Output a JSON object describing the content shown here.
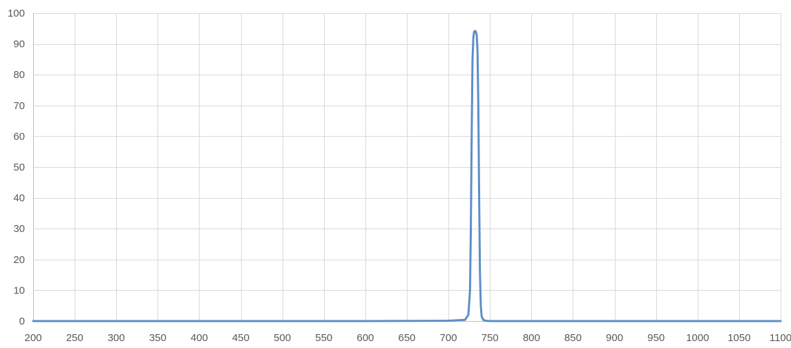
{
  "chart_data": {
    "type": "line",
    "title": "",
    "xlabel": "",
    "ylabel": "",
    "xlim": [
      200,
      1100
    ],
    "ylim": [
      0,
      100
    ],
    "x_ticks": [
      200,
      250,
      300,
      350,
      400,
      450,
      500,
      550,
      600,
      650,
      700,
      750,
      800,
      850,
      900,
      950,
      1000,
      1050,
      1100
    ],
    "y_ticks": [
      0,
      10,
      20,
      30,
      40,
      50,
      60,
      70,
      80,
      90,
      100
    ],
    "x_tick_labels": [
      "200",
      "250",
      "300",
      "350",
      "400",
      "450",
      "500",
      "550",
      "600",
      "650",
      "700",
      "750",
      "800",
      "850",
      "900",
      "950",
      "1000",
      "1050",
      "1100"
    ],
    "y_tick_labels": [
      "0",
      "10",
      "20",
      "30",
      "40",
      "50",
      "60",
      "70",
      "80",
      "90",
      "100"
    ],
    "grid": true,
    "legend": "none",
    "series_color": "#5b8fc9",
    "series": [
      {
        "x": [
          200,
          600,
          700,
          720,
          724,
          726,
          727,
          728,
          729,
          730,
          731,
          732,
          733,
          734,
          735,
          736,
          737,
          738,
          739,
          740,
          742,
          745,
          750,
          800,
          900,
          1000,
          1100
        ],
        "y": [
          0,
          0,
          0.1,
          0.4,
          2,
          10,
          30,
          60,
          85,
          92,
          94,
          94.2,
          94,
          93,
          88,
          70,
          40,
          15,
          5,
          1.5,
          0.4,
          0.1,
          0,
          0,
          0,
          0,
          0
        ]
      }
    ]
  }
}
